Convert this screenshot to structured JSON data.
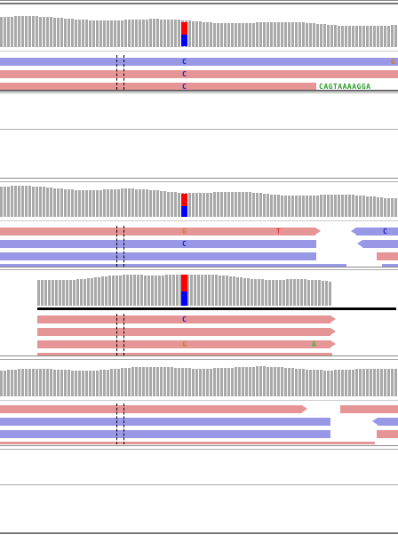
{
  "colors": {
    "forward_read": "#e59595",
    "reverse_read": "#9898e6",
    "coverage_bar": "#a9a9a9",
    "allele_ref": "#ff0000",
    "allele_alt": "#0000ff",
    "base_c": "#0000cc",
    "base_g": "#d17b22",
    "base_t": "#e04040",
    "base_a": "#30c030"
  },
  "samples": [
    {
      "name": "track-1",
      "bases": [
        {
          "letter": "C",
          "color": "#1a1ac8"
        },
        {
          "letter": "C",
          "color": "#1a1ac8"
        },
        {
          "letter": "C",
          "color": "#1a1ac8"
        },
        {
          "letter": "G",
          "color": "#d17b22"
        }
      ],
      "soft_clip": "CAGTAAAAGGA"
    },
    {
      "name": "track-2",
      "bases": [
        {
          "letter": "G",
          "color": "#d17b22"
        },
        {
          "letter": "T",
          "color": "#e04040"
        },
        {
          "letter": "C",
          "color": "#1a1ac8"
        },
        {
          "letter": "C",
          "color": "#1a1ac8"
        }
      ]
    },
    {
      "name": "track-3",
      "bases": [
        {
          "letter": "C",
          "color": "#1a1ac8"
        },
        {
          "letter": "G",
          "color": "#d17b22"
        },
        {
          "letter": "A",
          "color": "#30c030"
        }
      ]
    },
    {
      "name": "track-4",
      "bases": []
    }
  ]
}
